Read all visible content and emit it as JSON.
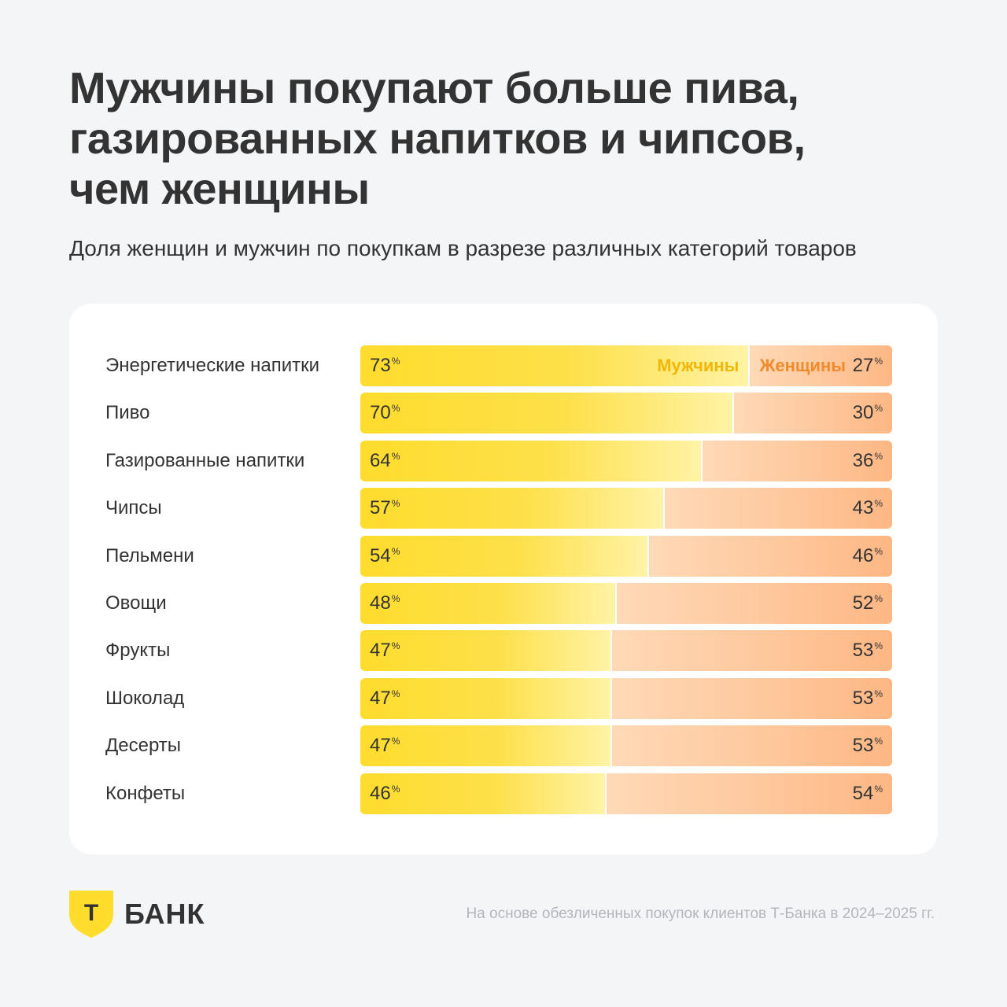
{
  "title_lines": [
    "Мужчины покупают больше пива,",
    "газированных напитков и чипсов,",
    "чем женщины"
  ],
  "subtitle": "Доля женщин и мужчин по покупкам в разрезе различных категорий товаров",
  "percent_sign": "%",
  "chart_data": {
    "type": "bar",
    "stacked": true,
    "orientation": "horizontal",
    "title": "Мужчины покупают больше пива, газированных напитков и чипсов, чем женщины",
    "subtitle": "Доля женщин и мужчин по покупкам в разрезе различных категорий товаров",
    "categories": [
      "Энергетические напитки",
      "Пиво",
      "Газированные напитки",
      "Чипсы",
      "Пельмени",
      "Овощи",
      "Фрукты",
      "Шоколад",
      "Десерты",
      "Конфеты"
    ],
    "series": [
      {
        "name": "Мужчины",
        "values": [
          73,
          70,
          64,
          57,
          54,
          48,
          47,
          47,
          47,
          46
        ],
        "color": "#ffdc2d"
      },
      {
        "name": "Женщины",
        "values": [
          27,
          30,
          36,
          43,
          46,
          52,
          53,
          53,
          53,
          54
        ],
        "color": "#fdb784"
      }
    ],
    "unit": "%",
    "xlim": [
      0,
      100
    ],
    "legend": "inline-first-row"
  },
  "brand": {
    "logo_letter": "Т",
    "logo_text": "БАНК",
    "shield_color": "#ffdd2d"
  },
  "footnote": "На основе обезличенных покупок клиентов Т-Банка в 2024–2025 гг."
}
